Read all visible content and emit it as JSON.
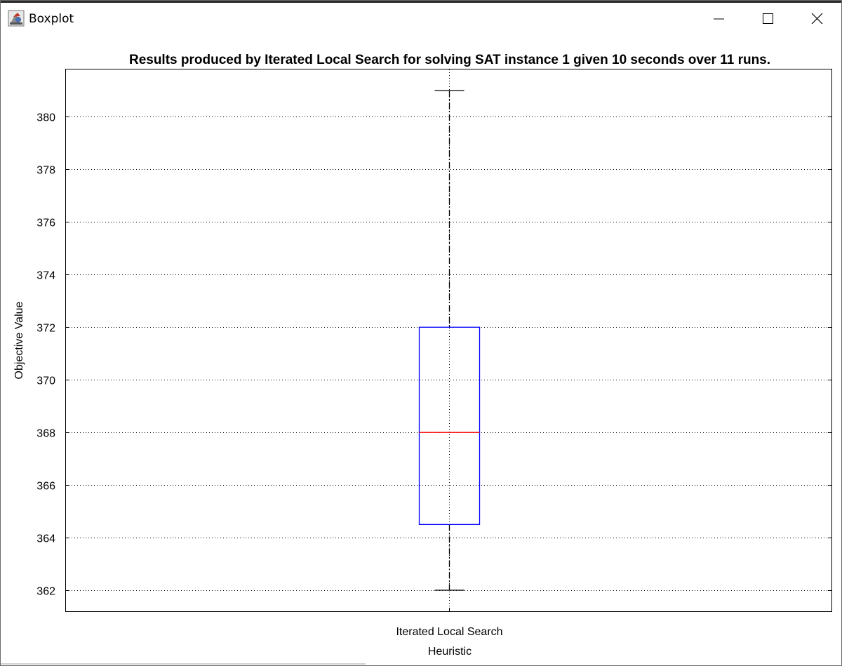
{
  "window": {
    "title": "Boxplot",
    "controls": [
      "minimize",
      "maximize",
      "close"
    ]
  },
  "icons": {
    "app": "java-app-icon",
    "minimize": "minimize-icon",
    "maximize": "maximize-icon",
    "close": "close-icon"
  },
  "colors": {
    "box": "#0000ff",
    "median": "#ff0000",
    "whisker": "#000000",
    "grid": "#000000"
  },
  "chart_data": {
    "type": "boxplot",
    "title": "Results produced by Iterated Local Search for solving SAT instance 1 given 10 seconds over 11 runs.",
    "xlabel": "Heuristic",
    "ylabel": "Objective Value",
    "categories": [
      "Iterated Local Search"
    ],
    "boxes": [
      {
        "name": "Iterated Local Search",
        "whisker_low": 362,
        "q1": 364.5,
        "median": 368,
        "q3": 372,
        "whisker_high": 381
      }
    ],
    "ylim": [
      361.2,
      381.8
    ],
    "yticks": [
      362,
      364,
      366,
      368,
      370,
      372,
      374,
      376,
      378,
      380
    ],
    "grid": true,
    "legend": "none"
  }
}
